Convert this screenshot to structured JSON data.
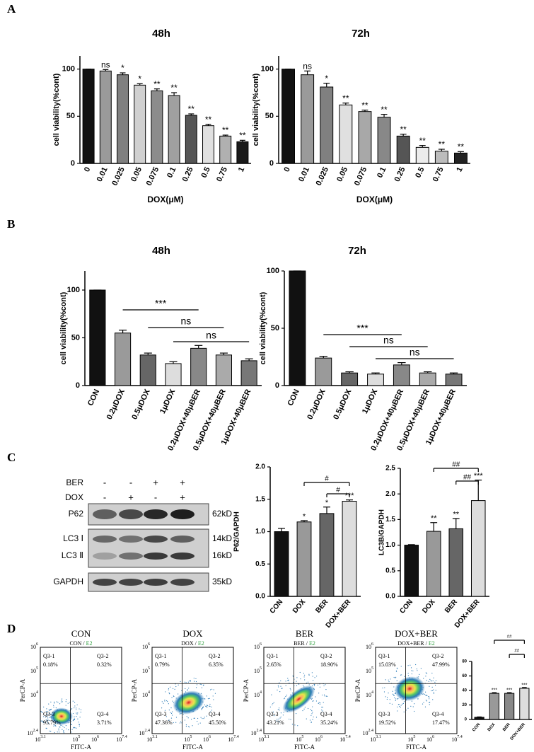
{
  "panels": [
    "A",
    "B",
    "C",
    "D"
  ],
  "chart_data": [
    {
      "type": "bar",
      "title": "48h",
      "y_label": "cell viability(%cont)",
      "x_label": "DOX(μM)",
      "categories": [
        "0",
        "0.01",
        "0.025",
        "0.05",
        "0.075",
        "0.1",
        "0.25",
        "0.5",
        "0.75",
        "1"
      ],
      "values": [
        100,
        98,
        94,
        83,
        77,
        72,
        51,
        40,
        29,
        23
      ],
      "errors": [
        0,
        1.5,
        2,
        1.5,
        2,
        3,
        1.5,
        1.5,
        1,
        1.5
      ],
      "significance": [
        null,
        "ns",
        "*",
        "*",
        "**",
        "**",
        "**",
        "**",
        "**",
        "**"
      ],
      "colors": [
        "#111111",
        "#9a9a9a",
        "#808080",
        "#d0d0d0",
        "#8c8c8c",
        "#a0a0a0",
        "#555555",
        "#e0e0e0",
        "#b0b0b0",
        "#1a1a1a"
      ],
      "ylim": [
        0,
        114
      ],
      "yticks": [
        0,
        50,
        100
      ]
    },
    {
      "type": "bar",
      "title": "72h",
      "y_label": "cell viability(%cont)",
      "x_label": "DOX(μM)",
      "categories": [
        "0",
        "0.01",
        "0.025",
        "0.05",
        "0.075",
        "0.1",
        "0.25",
        "0.5",
        "0.75",
        "1"
      ],
      "values": [
        100,
        94,
        81,
        62,
        55,
        49,
        29,
        17,
        13,
        11
      ],
      "errors": [
        0,
        4,
        4,
        2,
        1.5,
        3,
        2,
        2,
        2,
        1.5
      ],
      "significance": [
        null,
        "ns",
        "*",
        "**",
        "**",
        "**",
        "**",
        "**",
        "**",
        "**"
      ],
      "colors": [
        "#111111",
        "#9a9a9a",
        "#808080",
        "#e0e0e0",
        "#a8a8a8",
        "#888888",
        "#555555",
        "#ececec",
        "#bcbcbc",
        "#222222"
      ],
      "ylim": [
        0,
        114
      ],
      "yticks": [
        0,
        50,
        100
      ]
    },
    {
      "type": "bar",
      "title": "48h",
      "y_label": "cell viability(%cont)",
      "categories": [
        "CON",
        "0.2μDOX",
        "0.5μDOX",
        "1μDOX",
        "0.2μDOX+40μBER",
        "0.5μDOX+40μBER",
        "1μDOX+40μBER"
      ],
      "values": [
        100,
        55,
        32,
        23,
        39,
        32,
        26
      ],
      "errors": [
        0,
        3,
        2,
        2,
        3,
        2,
        2
      ],
      "colors": [
        "#111111",
        "#9a9a9a",
        "#666666",
        "#dddddd",
        "#888888",
        "#aaaaaa",
        "#777777"
      ],
      "ylim": [
        0,
        120
      ],
      "yticks": [
        0,
        50,
        100
      ],
      "comparisons": [
        {
          "from": "0.2μDOX",
          "to": "0.2μDOX+40μBER",
          "label": "***"
        },
        {
          "from": "0.5μDOX",
          "to": "0.5μDOX+40μBER",
          "label": "ns"
        },
        {
          "from": "1μDOX",
          "to": "1μDOX+40μBER",
          "label": "ns"
        }
      ]
    },
    {
      "type": "bar",
      "title": "72h",
      "y_label": "cell viability(%cont)",
      "categories": [
        "CON",
        "0.2μDOX",
        "0.5μDOX",
        "1μDOX",
        "0.2μDOX+40μBER",
        "0.5μDOX+40μBER",
        "1μDOX+40μBER"
      ],
      "values": [
        100,
        24,
        11,
        10,
        18,
        11,
        10
      ],
      "errors": [
        0,
        1.5,
        1,
        1,
        2,
        1,
        1
      ],
      "colors": [
        "#111111",
        "#9a9a9a",
        "#666666",
        "#dddddd",
        "#888888",
        "#aaaaaa",
        "#777777"
      ],
      "ylim": [
        0,
        100
      ],
      "yticks": [
        0,
        50,
        100
      ],
      "comparisons": [
        {
          "from": "0.2μDOX",
          "to": "0.2μDOX+40μBER",
          "label": "***"
        },
        {
          "from": "0.5μDOX",
          "to": "0.5μDOX+40μBER",
          "label": "ns"
        },
        {
          "from": "1μDOX",
          "to": "1μDOX+40μBER",
          "label": "ns"
        }
      ]
    },
    {
      "type": "bar",
      "y_label": "P62/GAPDH",
      "categories": [
        "CON",
        "DOX",
        "BER",
        "DOX+BER"
      ],
      "values": [
        1.0,
        1.15,
        1.28,
        1.47
      ],
      "errors": [
        0.05,
        0.02,
        0.1,
        0.02
      ],
      "significance": [
        null,
        "*",
        "*",
        "***"
      ],
      "colors": [
        "#111111",
        "#999999",
        "#666666",
        "#dddddd"
      ],
      "ylim": [
        0,
        2
      ],
      "yticks": [
        {
          "value": 0,
          "label": "0.0"
        },
        0.5,
        {
          "value": 1,
          "label": "1.0"
        },
        1.5,
        {
          "value": 2,
          "label": "2.0"
        }
      ],
      "comparisons": [
        {
          "from": "DOX",
          "to": "DOX+BER",
          "label": "#"
        },
        {
          "from": "BER",
          "to": "DOX+BER",
          "label": "#"
        }
      ]
    },
    {
      "type": "bar",
      "y_label": "LC3B/GAPDH",
      "categories": [
        "CON",
        "DOX",
        "BER",
        "DOX+BER"
      ],
      "values": [
        1.0,
        1.27,
        1.32,
        1.87
      ],
      "errors": [
        0.01,
        0.17,
        0.2,
        0.4
      ],
      "significance": [
        null,
        "**",
        "**",
        "***"
      ],
      "colors": [
        "#111111",
        "#999999",
        "#666666",
        "#dddddd"
      ],
      "ylim": [
        0,
        2.5
      ],
      "yticks": [
        {
          "value": 0,
          "label": "0.0"
        },
        0.5,
        {
          "value": 1,
          "label": "1.0"
        },
        1.5,
        {
          "value": 2,
          "label": "2.0"
        },
        2.5
      ],
      "comparisons": [
        {
          "from": "DOX",
          "to": "DOX+BER",
          "label": "##"
        },
        {
          "from": "BER",
          "to": "DOX+BER",
          "label": "##"
        }
      ]
    },
    {
      "type": "bar",
      "categories": [
        "CON",
        "DOX",
        "BER",
        "DOX+BER"
      ],
      "values": [
        3,
        36,
        36,
        43
      ],
      "errors": [
        0.5,
        1,
        1,
        1
      ],
      "significance": [
        null,
        "***",
        "***",
        "***"
      ],
      "colors": [
        "#111111",
        "#999999",
        "#888888",
        "#dddddd"
      ],
      "ylim": [
        0,
        80
      ],
      "yticks": [
        0,
        20,
        40,
        60,
        80
      ],
      "comparisons": [
        {
          "from": "DOX",
          "to": "DOX+BER",
          "label": "##"
        },
        {
          "from": "BER",
          "to": "DOX+BER",
          "label": "##"
        }
      ]
    }
  ],
  "blot": {
    "treatments": [
      {
        "name": "BER",
        "signs": [
          "-",
          "-",
          "+",
          "+"
        ]
      },
      {
        "name": "DOX",
        "signs": [
          "-",
          "+",
          "-",
          "+"
        ]
      }
    ],
    "rows": [
      {
        "name": "P62",
        "size": "62kD"
      },
      {
        "name": "LC3 Ⅰ",
        "size": "14kD"
      },
      {
        "name": "LC3 Ⅱ",
        "size": "16kD"
      },
      {
        "name": "GAPDH",
        "size": "35kD"
      }
    ]
  },
  "flow": {
    "x_label": "FITC-A",
    "y_label": "PerCP-A",
    "gate": "E2",
    "sep": "/",
    "base": "10",
    "x_exps": [
      "3.1",
      "5",
      "6",
      "7.4"
    ],
    "y_exps": [
      "2.4",
      "4",
      "5",
      "6"
    ],
    "samples": [
      {
        "name": "CON",
        "quadrants": [
          {
            "id": "Q3-1",
            "pct": "0.18%"
          },
          {
            "id": "Q3-2",
            "pct": "0.32%"
          },
          {
            "id": "Q3-3",
            "pct": "95.79%"
          },
          {
            "id": "Q3-4",
            "pct": "3.71%"
          }
        ]
      },
      {
        "name": "DOX",
        "quadrants": [
          {
            "id": "Q3-1",
            "pct": "0.79%"
          },
          {
            "id": "Q3-2",
            "pct": "6.35%"
          },
          {
            "id": "Q3-3",
            "pct": "47.36%"
          },
          {
            "id": "Q3-4",
            "pct": "45.50%"
          }
        ]
      },
      {
        "name": "BER",
        "quadrants": [
          {
            "id": "Q3-1",
            "pct": "2.65%"
          },
          {
            "id": "Q3-2",
            "pct": "18.90%"
          },
          {
            "id": "Q3-3",
            "pct": "43.21%"
          },
          {
            "id": "Q3-4",
            "pct": "35.24%"
          }
        ]
      },
      {
        "name": "DOX+BER",
        "quadrants": [
          {
            "id": "Q3-1",
            "pct": "15.03%"
          },
          {
            "id": "Q3-2",
            "pct": "47.99%"
          },
          {
            "id": "Q3-3",
            "pct": "19.52%"
          },
          {
            "id": "Q3-4",
            "pct": "17.47%"
          }
        ]
      }
    ]
  }
}
